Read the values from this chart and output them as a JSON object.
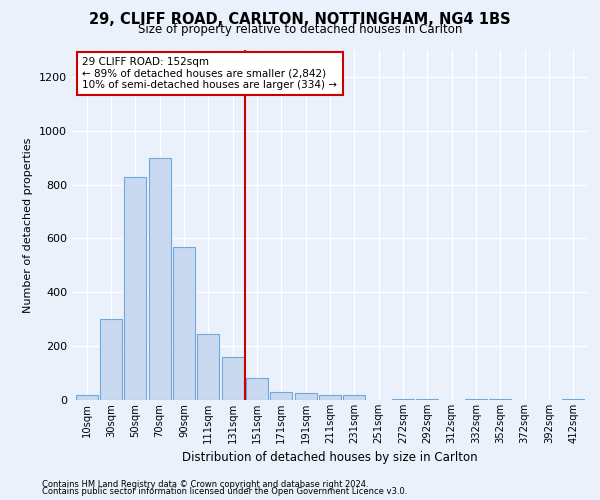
{
  "title_line1": "29, CLIFF ROAD, CARLTON, NOTTINGHAM, NG4 1BS",
  "title_line2": "Size of property relative to detached houses in Carlton",
  "xlabel": "Distribution of detached houses by size in Carlton",
  "ylabel": "Number of detached properties",
  "footer_line1": "Contains HM Land Registry data © Crown copyright and database right 2024.",
  "footer_line2": "Contains public sector information licensed under the Open Government Licence v3.0.",
  "categories": [
    "10sqm",
    "30sqm",
    "50sqm",
    "70sqm",
    "90sqm",
    "111sqm",
    "131sqm",
    "151sqm",
    "171sqm",
    "191sqm",
    "211sqm",
    "231sqm",
    "251sqm",
    "272sqm",
    "292sqm",
    "312sqm",
    "332sqm",
    "352sqm",
    "372sqm",
    "392sqm",
    "412sqm"
  ],
  "values": [
    20,
    300,
    830,
    900,
    570,
    245,
    160,
    80,
    30,
    25,
    20,
    20,
    0,
    5,
    5,
    0,
    5,
    5,
    0,
    0,
    5
  ],
  "bar_color": "#c9d9f0",
  "bar_edge_color": "#6fa8dc",
  "annotation_text_line1": "29 CLIFF ROAD: 152sqm",
  "annotation_text_line2": "← 89% of detached houses are smaller (2,842)",
  "annotation_text_line3": "10% of semi-detached houses are larger (334) →",
  "vline_color": "#cc0000",
  "vline_x_index": 7.0,
  "ylim": [
    0,
    1300
  ],
  "yticks": [
    0,
    200,
    400,
    600,
    800,
    1000,
    1200
  ],
  "background_color": "#eaf1fb",
  "plot_bg_color": "#eaf1fb",
  "grid_color": "#ffffff",
  "annotation_box_color": "#ffffff",
  "annotation_box_edge": "#cc0000"
}
